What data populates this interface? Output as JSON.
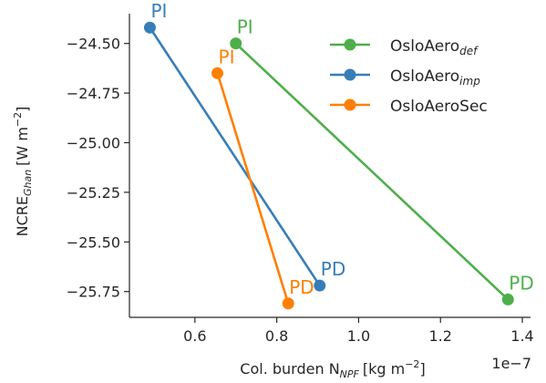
{
  "chart_data": {
    "type": "line",
    "xlabel": "Col. burden N",
    "xlabel_sub": "NPF",
    "xlabel_unit": "[kg m",
    "xlabel_sup": "−2",
    "xlabel_close": "]",
    "x_offset_text": "1e−7",
    "ylabel": "NCRE",
    "ylabel_sub": "Ghan",
    "ylabel_unit": "[W m",
    "ylabel_sup": "−2",
    "ylabel_close": "]",
    "xlim": [
      0.44,
      1.42
    ],
    "ylim": [
      -25.88,
      -24.35
    ],
    "x_ticks": [
      0.6,
      0.8,
      1.0,
      1.2,
      1.4
    ],
    "x_tick_labels": [
      "0.6",
      "0.8",
      "1.0",
      "1.2",
      "1.4"
    ],
    "y_ticks": [
      -24.5,
      -24.75,
      -25.0,
      -25.25,
      -25.5,
      -25.75
    ],
    "y_tick_labels": [
      "−24.50",
      "−24.75",
      "−25.00",
      "−25.25",
      "−25.50",
      "−25.75"
    ],
    "legend_position": "top-right",
    "series": [
      {
        "name": "OsloAero",
        "name_sub": "def",
        "color": "#4daf4a",
        "points": [
          {
            "label": "PI",
            "x": 0.7,
            "y": -24.5
          },
          {
            "label": "PD",
            "x": 1.365,
            "y": -25.79
          }
        ]
      },
      {
        "name": "OsloAero",
        "name_sub": "imp",
        "color": "#377eb8",
        "points": [
          {
            "label": "PI",
            "x": 0.49,
            "y": -24.42
          },
          {
            "label": "PD",
            "x": 0.905,
            "y": -25.72
          }
        ]
      },
      {
        "name": "OsloAeroSec",
        "name_sub": "",
        "color": "#ff7f00",
        "points": [
          {
            "label": "PI",
            "x": 0.655,
            "y": -24.65
          },
          {
            "label": "PD",
            "x": 0.828,
            "y": -25.81
          }
        ]
      }
    ]
  }
}
